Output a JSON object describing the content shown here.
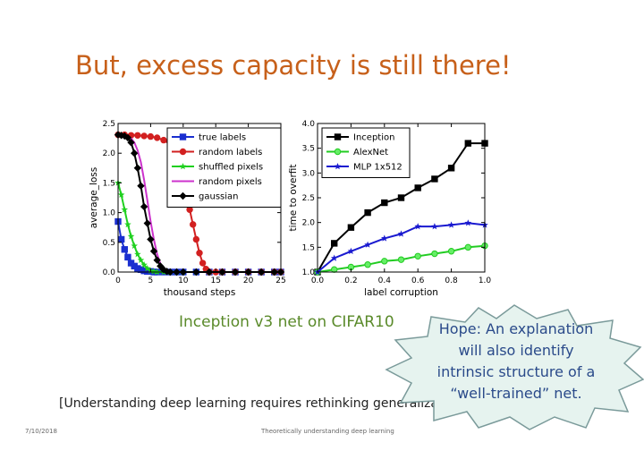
{
  "slide": {
    "title": "But, excess capacity is still there!",
    "caption": "Inception v3 net on CIFAR10",
    "citation": "[Understanding deep learning requires rethinking generalization",
    "date": "7/10/2018",
    "footer": "Theoretically understanding deep learning",
    "callout": "Hope: An explanation\nwill also  identify\nintrinsic structure of a\n“well-trained” net.",
    "colors": {
      "title": "#c7601a",
      "caption": "#5a8a2a",
      "callout_fill": "#e6f3ef",
      "callout_text": "#2a4a8a"
    }
  },
  "chart_data": [
    {
      "type": "line",
      "xlabel": "thousand steps",
      "ylabel": "average_loss",
      "xlim": [
        0,
        25
      ],
      "ylim": [
        0,
        2.5
      ],
      "xticks": [
        "0",
        "5",
        "10",
        "15",
        "20",
        "25"
      ],
      "yticks": [
        "0.0",
        "0.5",
        "1.0",
        "1.5",
        "2.0",
        "2.5"
      ],
      "legend_position": "top-right",
      "series": [
        {
          "name": "true labels",
          "color": "#1a2fd0",
          "marker": "square",
          "x": [
            0,
            0.5,
            1,
            1.5,
            2,
            2.5,
            3,
            3.5,
            4,
            4.5,
            5,
            5.5,
            6,
            7,
            8,
            9,
            10,
            12,
            14,
            16,
            18,
            20,
            22,
            24,
            25
          ],
          "y": [
            0.85,
            0.55,
            0.38,
            0.25,
            0.15,
            0.1,
            0.06,
            0.04,
            0.02,
            0.01,
            0.01,
            0,
            0,
            0,
            0,
            0,
            0,
            0,
            0,
            0,
            0,
            0,
            0,
            0,
            0
          ]
        },
        {
          "name": "random labels",
          "color": "#d22020",
          "marker": "circle",
          "x": [
            0,
            1,
            2,
            3,
            4,
            5,
            6,
            7,
            8,
            9,
            10,
            10.5,
            11,
            11.5,
            12,
            12.5,
            13,
            13.5,
            14,
            15,
            16,
            18,
            20,
            22,
            24,
            25
          ],
          "y": [
            2.31,
            2.31,
            2.3,
            2.3,
            2.29,
            2.28,
            2.26,
            2.22,
            2.15,
            2.0,
            1.6,
            1.35,
            1.05,
            0.8,
            0.55,
            0.32,
            0.15,
            0.05,
            0,
            0,
            0,
            0,
            0,
            0,
            0,
            0
          ]
        },
        {
          "name": "shuffled pixels",
          "color": "#1fd01f",
          "marker": "star",
          "x": [
            0,
            0.5,
            1,
            1.5,
            2,
            2.5,
            3,
            3.5,
            4,
            4.5,
            5,
            5.5,
            6,
            7,
            8,
            9,
            10,
            12,
            14,
            16,
            18,
            20,
            22,
            24,
            25
          ],
          "y": [
            1.5,
            1.3,
            1.05,
            0.8,
            0.6,
            0.44,
            0.3,
            0.2,
            0.12,
            0.06,
            0.02,
            0.01,
            0,
            0,
            0,
            0,
            0,
            0,
            0,
            0,
            0,
            0,
            0,
            0,
            0
          ]
        },
        {
          "name": "random pixels",
          "color": "#cc33cc",
          "marker": "none",
          "x": [
            0,
            1,
            1.5,
            2,
            2.5,
            3,
            3.5,
            4,
            4.5,
            5,
            5.5,
            6,
            6.5,
            7,
            7.5,
            8,
            9,
            10,
            12,
            14,
            16,
            18,
            20,
            22,
            24,
            25
          ],
          "y": [
            2.31,
            2.3,
            2.28,
            2.25,
            2.18,
            2.05,
            1.85,
            1.55,
            1.2,
            0.85,
            0.55,
            0.3,
            0.14,
            0.05,
            0.01,
            0,
            0,
            0,
            0,
            0,
            0,
            0,
            0,
            0,
            0,
            0
          ]
        },
        {
          "name": "gaussian",
          "color": "#000000",
          "marker": "diamond",
          "x": [
            0,
            0.5,
            1,
            1.5,
            2,
            2.5,
            3,
            3.5,
            4,
            4.5,
            5,
            5.5,
            6,
            6.5,
            7,
            7.5,
            8,
            9,
            10,
            12,
            14,
            16,
            18,
            20,
            22,
            24,
            25
          ],
          "y": [
            2.31,
            2.3,
            2.29,
            2.26,
            2.18,
            2.0,
            1.75,
            1.45,
            1.1,
            0.82,
            0.55,
            0.35,
            0.2,
            0.1,
            0.04,
            0.01,
            0,
            0,
            0,
            0,
            0,
            0,
            0,
            0,
            0,
            0,
            0
          ]
        }
      ]
    },
    {
      "type": "line",
      "xlabel": "label corruption",
      "ylabel": "time to overfit",
      "xlim": [
        0,
        1.0
      ],
      "ylim": [
        1.0,
        4.0
      ],
      "xticks": [
        "0.0",
        "0.2",
        "0.4",
        "0.6",
        "0.8",
        "1.0"
      ],
      "yticks": [
        "1.0",
        "1.5",
        "2.0",
        "2.5",
        "3.0",
        "3.5",
        "4.0"
      ],
      "legend_position": "top-left",
      "series": [
        {
          "name": "Inception",
          "color": "#000000",
          "marker": "square",
          "x": [
            0,
            0.1,
            0.2,
            0.3,
            0.4,
            0.5,
            0.6,
            0.7,
            0.8,
            0.9,
            1.0
          ],
          "y": [
            1.0,
            1.58,
            1.9,
            2.2,
            2.4,
            2.5,
            2.7,
            2.88,
            3.1,
            3.6,
            3.6
          ]
        },
        {
          "name": "AlexNet",
          "color": "#22cc22",
          "marker": "circle",
          "x": [
            0,
            0.1,
            0.2,
            0.3,
            0.4,
            0.5,
            0.6,
            0.7,
            0.8,
            0.9,
            1.0
          ],
          "y": [
            1.0,
            1.05,
            1.1,
            1.15,
            1.22,
            1.25,
            1.32,
            1.37,
            1.42,
            1.5,
            1.53
          ]
        },
        {
          "name": "MLP 1x512",
          "color": "#1a1ad0",
          "marker": "star",
          "x": [
            0,
            0.1,
            0.2,
            0.3,
            0.4,
            0.5,
            0.6,
            0.7,
            0.8,
            0.9,
            1.0
          ],
          "y": [
            1.0,
            1.28,
            1.42,
            1.55,
            1.68,
            1.77,
            1.92,
            1.92,
            1.95,
            1.99,
            1.95
          ]
        }
      ]
    }
  ]
}
